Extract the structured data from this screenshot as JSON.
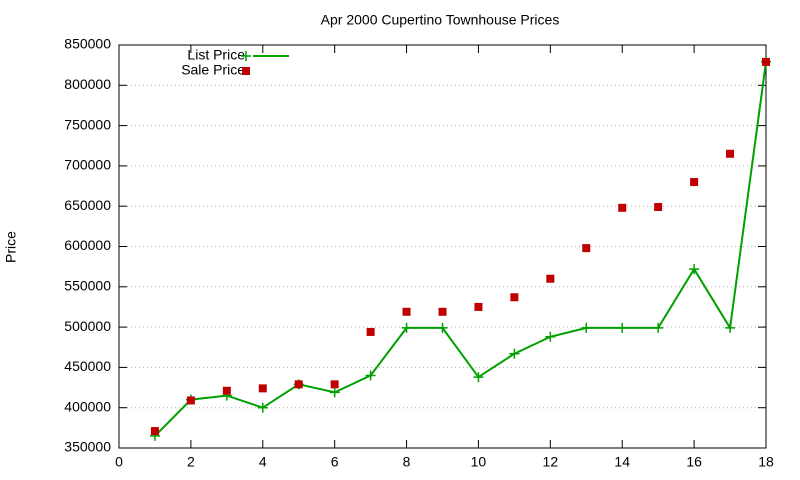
{
  "chart_data": {
    "type": "line",
    "title": "Apr 2000 Cupertino Townhouse Prices",
    "y_label": "Price",
    "x": [
      1,
      2,
      3,
      4,
      5,
      6,
      7,
      8,
      9,
      10,
      11,
      12,
      13,
      14,
      15,
      16,
      17,
      18
    ],
    "series": [
      {
        "name": "List Price",
        "color": "#00a000",
        "mode": "lines+markers",
        "marker": "plus",
        "values": [
          365000,
          410000,
          415000,
          400000,
          429000,
          419000,
          440000,
          499000,
          499000,
          438000,
          467000,
          488000,
          499000,
          499000,
          499000,
          572000,
          499000,
          829000
        ]
      },
      {
        "name": "Sale Price",
        "color": "#c00000",
        "mode": "markers",
        "marker": "square",
        "values": [
          371000,
          409000,
          421000,
          424000,
          429000,
          429000,
          494000,
          519000,
          519000,
          525000,
          537000,
          560000,
          598000,
          648000,
          649000,
          680000,
          715000,
          829000
        ]
      }
    ],
    "xlim": [
      0,
      18
    ],
    "xticks": [
      0,
      2,
      4,
      6,
      8,
      10,
      12,
      14,
      16,
      18
    ],
    "ylim": [
      350000,
      850000
    ],
    "yticks": [
      350000,
      400000,
      450000,
      500000,
      550000,
      600000,
      650000,
      700000,
      750000,
      800000,
      850000
    ],
    "grid": "y",
    "legend": "top-left"
  }
}
